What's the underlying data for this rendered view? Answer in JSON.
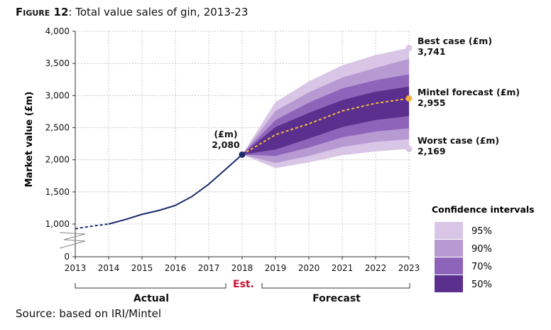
{
  "figure_label": "Figure 12",
  "title_text": ": Total value sales of gin, 2013-23",
  "source": "Source: based on IRI/Mintel",
  "chart_data": {
    "type": "line",
    "title": "Total value sales of gin, 2013-23",
    "ylabel": "Market value (£m)",
    "xlabel": "",
    "x_range": [
      2013,
      2023
    ],
    "ylim": [
      0,
      4000
    ],
    "x_ticks": [
      2013,
      2014,
      2015,
      2016,
      2017,
      2018,
      2019,
      2020,
      2021,
      2022,
      2023
    ],
    "y_ticks": [
      0,
      1000,
      1500,
      2000,
      2500,
      3000,
      3500,
      4000
    ],
    "y_tick_labels": [
      "0",
      "1,000",
      "1,500",
      "2,000",
      "2,500",
      "3,000",
      "3,500",
      "4,000"
    ],
    "grid": true,
    "actual": {
      "x": [
        2013,
        2013.3,
        2013.6,
        2014,
        2014.5,
        2015,
        2015.5,
        2016,
        2016.5,
        2017,
        2017.5,
        2018
      ],
      "y": [
        855,
        905,
        950,
        1000,
        1070,
        1150,
        1210,
        1290,
        1430,
        1620,
        1850,
        2080
      ]
    },
    "forecast": {
      "x": [
        2018,
        2019,
        2020,
        2021,
        2022,
        2023
      ],
      "y": [
        2080,
        2390,
        2560,
        2760,
        2880,
        2955
      ]
    },
    "intervals": [
      {
        "label": "95%",
        "color": "#d9c6e6",
        "upper": [
          2080,
          2900,
          3220,
          3470,
          3630,
          3741
        ],
        "lower": [
          2080,
          1870,
          1960,
          2070,
          2130,
          2169
        ]
      },
      {
        "label": "90%",
        "color": "#b89ad3",
        "upper": [
          2080,
          2760,
          3050,
          3280,
          3430,
          3570
        ],
        "lower": [
          2080,
          1950,
          2060,
          2200,
          2280,
          2320
        ]
      },
      {
        "label": "70%",
        "color": "#8e64ba",
        "upper": [
          2080,
          2620,
          2890,
          3110,
          3240,
          3330
        ],
        "lower": [
          2080,
          2060,
          2190,
          2350,
          2440,
          2490
        ]
      },
      {
        "label": "50%",
        "color": "#5a2f8e",
        "upper": [
          2080,
          2510,
          2730,
          2930,
          3060,
          3140
        ],
        "lower": [
          2080,
          2160,
          2330,
          2510,
          2620,
          2680
        ]
      }
    ],
    "legend_title": "Confidence intervals",
    "legend_position": "bottom-right",
    "annotations": {
      "best_case_label": "Best case (£m)",
      "best_case_value": "3,741",
      "forecast_label": "Mintel forecast (£m)",
      "forecast_value": "2,955",
      "worst_case_label": "Worst case (£m)",
      "worst_case_value": "2,169",
      "est_unit": "(£m)",
      "est_value": "2,080"
    },
    "segments": {
      "actual": "Actual",
      "est": "Est.",
      "forecast": "Forecast"
    }
  }
}
